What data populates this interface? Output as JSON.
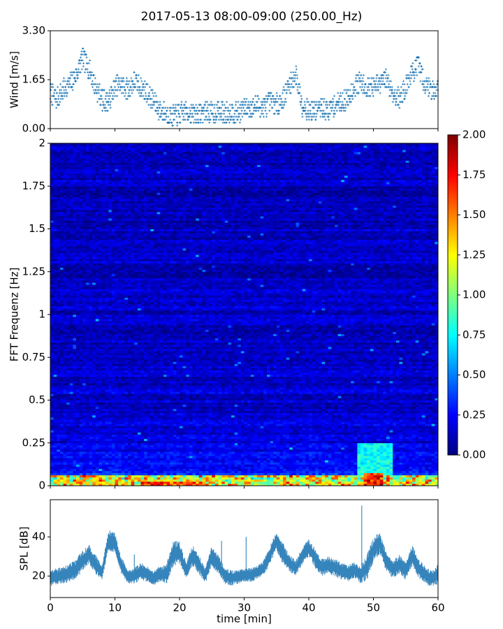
{
  "title": "2017-05-13 08:00-09:00 (250.00_Hz)",
  "colors": {
    "series": "#1f77b4",
    "axis": "#000000",
    "background": "#ffffff"
  },
  "chart_data": [
    {
      "type": "scatter",
      "name": "wind",
      "ylabel": "Wind [m/s]",
      "ylim": [
        0,
        3.3
      ],
      "yticks": [
        0.0,
        1.65,
        3.3
      ],
      "ytick_labels": [
        "0.00",
        "1.65",
        "3.30"
      ],
      "xlim": [
        0,
        60
      ],
      "marker": "+",
      "x": [
        0,
        1,
        2,
        3,
        4,
        5,
        6,
        7,
        8,
        9,
        10,
        11,
        12,
        13,
        14,
        15,
        16,
        17,
        18,
        19,
        20,
        21,
        22,
        23,
        24,
        25,
        26,
        27,
        28,
        29,
        30,
        31,
        32,
        33,
        34,
        35,
        36,
        37,
        38,
        39,
        40,
        41,
        42,
        43,
        44,
        45,
        46,
        47,
        48,
        49,
        50,
        51,
        52,
        53,
        54,
        55,
        56,
        57,
        58,
        59,
        60
      ],
      "y": [
        1.2,
        1.0,
        1.3,
        1.5,
        1.8,
        2.4,
        2.0,
        1.4,
        1.0,
        0.9,
        1.4,
        1.5,
        1.3,
        1.6,
        1.4,
        1.2,
        0.9,
        0.6,
        0.5,
        0.4,
        0.5,
        0.6,
        0.5,
        0.5,
        0.6,
        0.5,
        0.6,
        0.5,
        0.6,
        0.5,
        0.7,
        0.7,
        0.8,
        0.7,
        0.9,
        0.8,
        1.0,
        1.5,
        1.8,
        0.8,
        0.6,
        0.6,
        0.7,
        0.6,
        0.8,
        0.9,
        1.0,
        1.4,
        1.6,
        1.4,
        1.4,
        1.5,
        1.7,
        1.2,
        1.0,
        1.4,
        1.9,
        2.1,
        1.5,
        1.3,
        1.4
      ],
      "spread": 0.35
    },
    {
      "type": "heatmap",
      "name": "spectrogram",
      "ylabel": "FFT Frequenz [Hz]",
      "ylim": [
        0,
        2
      ],
      "yticks": [
        0,
        0.25,
        0.5,
        0.75,
        1,
        1.25,
        1.5,
        1.75,
        2
      ],
      "ytick_labels": [
        "0",
        "0.25",
        "0.5",
        "0.75",
        "1",
        "1.25",
        "1.5",
        "1.75",
        "2"
      ],
      "xlim": [
        0,
        60
      ],
      "colormap": "jet",
      "clim": [
        0,
        2
      ],
      "colorbar_ticks": [
        0.0,
        0.25,
        0.5,
        0.75,
        1.0,
        1.25,
        1.5,
        1.75,
        2.0
      ],
      "colorbar_tick_labels": [
        "0.00",
        "0.25",
        "0.50",
        "0.75",
        "1.00",
        "1.25",
        "1.50",
        "1.75",
        "2.00"
      ],
      "freq_bins": 160,
      "time_bins": 120,
      "hot_regions": [
        {
          "t": [
            48.5,
            51.5
          ],
          "f": [
            0,
            0.08
          ],
          "level": 2.0
        },
        {
          "t": [
            14,
            24
          ],
          "f": [
            0,
            0.03
          ],
          "level": 1.9
        },
        {
          "t": [
            47.5,
            53
          ],
          "f": [
            0.05,
            0.25
          ],
          "level": 0.9
        }
      ]
    },
    {
      "type": "area",
      "name": "spl",
      "ylabel": "SPL [dB]",
      "xlabel": "time [min]",
      "ylim": [
        9,
        59
      ],
      "yticks": [
        20,
        40
      ],
      "ytick_labels": [
        "20",
        "40"
      ],
      "xlim": [
        0,
        60
      ],
      "xticks": [
        0,
        10,
        20,
        30,
        40,
        50,
        60
      ],
      "xtick_labels": [
        "0",
        "10",
        "20",
        "30",
        "40",
        "50",
        "60"
      ],
      "x": [
        0,
        1,
        2,
        3,
        4,
        5,
        6,
        7,
        8,
        9,
        10,
        11,
        12,
        13,
        14,
        15,
        16,
        17,
        18,
        19,
        20,
        21,
        22,
        23,
        24,
        25,
        26,
        27,
        28,
        29,
        30,
        31,
        32,
        33,
        34,
        35,
        36,
        37,
        38,
        39,
        40,
        41,
        42,
        43,
        44,
        45,
        46,
        47,
        48,
        49,
        50,
        51,
        52,
        53,
        54,
        55,
        56,
        57,
        58,
        59,
        60
      ],
      "low": [
        16,
        16,
        17,
        18,
        19,
        24,
        27,
        22,
        19,
        34,
        33,
        22,
        17,
        17,
        19,
        18,
        16,
        18,
        17,
        26,
        27,
        19,
        26,
        22,
        17,
        26,
        22,
        17,
        16,
        17,
        18,
        18,
        19,
        21,
        27,
        34,
        27,
        23,
        21,
        27,
        31,
        25,
        21,
        22,
        21,
        19,
        18,
        20,
        17,
        19,
        28,
        32,
        23,
        20,
        22,
        19,
        26,
        20,
        17,
        15,
        17
      ],
      "high": [
        22,
        23,
        24,
        26,
        28,
        32,
        35,
        30,
        24,
        43,
        41,
        29,
        22,
        23,
        26,
        24,
        22,
        24,
        25,
        38,
        37,
        26,
        35,
        30,
        23,
        35,
        30,
        23,
        22,
        22,
        23,
        23,
        25,
        27,
        35,
        42,
        36,
        30,
        27,
        34,
        38,
        33,
        28,
        29,
        28,
        26,
        25,
        26,
        24,
        30,
        39,
        42,
        31,
        27,
        30,
        26,
        35,
        28,
        24,
        22,
        25
      ],
      "spikes": [
        {
          "x": 48.2,
          "y": 56
        },
        {
          "x": 30.3,
          "y": 40
        },
        {
          "x": 13,
          "y": 31
        },
        {
          "x": 26.5,
          "y": 38
        }
      ]
    }
  ]
}
